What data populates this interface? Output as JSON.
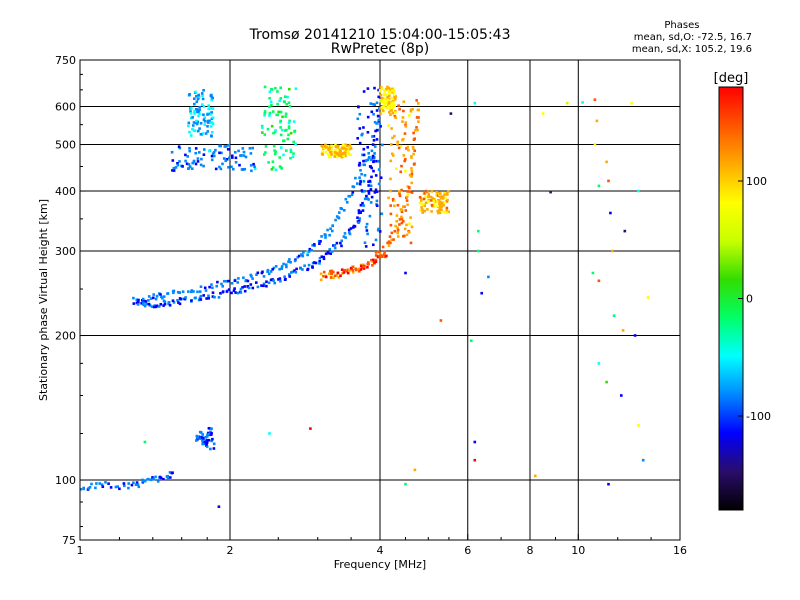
{
  "chart_data": {
    "type": "scatter",
    "title": "Tromsø 20141210 15:04:00-15:05:43",
    "subtitle": "RwPretec (8p)",
    "xlabel": "Frequency [MHz]",
    "ylabel": "Stationary phase Virtual Height [km]",
    "xscale": "log",
    "yscale": "log",
    "xlim": [
      1,
      16
    ],
    "ylim": [
      75,
      750
    ],
    "xticks": [
      1,
      2,
      4,
      6,
      8,
      10,
      16
    ],
    "yticks": [
      75,
      100,
      200,
      300,
      400,
      500,
      600,
      750
    ],
    "grid": true,
    "phase_legend": {
      "heading": "Phases",
      "line_o": "mean, sd,O: -72.5, 16.7",
      "line_x": "mean, sd,X: 105.2, 19.6"
    },
    "colorbar": {
      "label": "[deg]",
      "range": [
        -180,
        180
      ],
      "ticks": [
        100,
        0,
        -100
      ],
      "colors": [
        "#000000",
        "#2a0d6b",
        "#0000ff",
        "#0088ff",
        "#00ffff",
        "#00ff66",
        "#33dd00",
        "#c8ff00",
        "#ffff00",
        "#ffaa00",
        "#ff5500",
        "#ff0000"
      ]
    },
    "traces": [
      {
        "f": [
          1.29,
          1.33,
          1.4,
          1.5,
          1.6,
          1.75,
          1.9,
          2.05,
          2.2,
          2.4,
          2.6,
          2.8,
          3.0,
          3.2,
          3.4,
          3.6,
          3.75,
          3.85,
          3.92,
          3.97
        ],
        "h": [
          237,
          233,
          232,
          234,
          236,
          240,
          244,
          248,
          252,
          258,
          265,
          275,
          285,
          300,
          320,
          345,
          380,
          430,
          520,
          620
        ],
        "phase": -100
      },
      {
        "f": [
          1.35,
          1.45,
          1.6,
          1.8,
          2.0,
          2.2,
          2.4,
          2.6,
          2.8,
          3.0,
          3.2,
          3.4,
          3.6,
          3.8
        ],
        "h": [
          240,
          242,
          246,
          252,
          258,
          264,
          272,
          282,
          295,
          312,
          336,
          370,
          420,
          480
        ],
        "phase": -85
      },
      {
        "f": [
          3.05,
          3.3,
          3.6,
          3.9,
          4.2,
          4.4,
          4.55,
          4.65,
          4.72,
          4.78
        ],
        "h": [
          265,
          268,
          275,
          290,
          315,
          345,
          390,
          450,
          530,
          620
        ],
        "phase": 130
      },
      {
        "f": [
          3.1,
          3.4,
          3.7,
          3.95,
          4.1
        ],
        "h": [
          268,
          271,
          278,
          288,
          298
        ],
        "phase": 160
      },
      {
        "f": [
          1.0,
          1.1,
          1.25,
          1.35,
          1.45,
          1.55
        ],
        "h": [
          96,
          98,
          97,
          99,
          101,
          103
        ],
        "phase": -90
      },
      {
        "f": [
          1.72,
          1.75,
          1.78,
          1.8,
          1.82,
          1.85
        ],
        "h": [
          120,
          125,
          118,
          122,
          128,
          115
        ],
        "phase": -95
      }
    ],
    "clusters": [
      {
        "f": [
          2.32,
          2.72
        ],
        "h": [
          440,
          660
        ],
        "phase": -20
      },
      {
        "f": [
          1.52,
          2.25
        ],
        "h": [
          440,
          500
        ],
        "phase": -90
      },
      {
        "f": [
          1.65,
          1.85
        ],
        "h": [
          520,
          650
        ],
        "phase": -70
      },
      {
        "f": [
          3.6,
          4.05
        ],
        "h": [
          300,
          660
        ],
        "phase": -100
      },
      {
        "f": [
          4.15,
          4.65
        ],
        "h": [
          310,
          650
        ],
        "phase": 120
      },
      {
        "f": [
          3.05,
          3.5
        ],
        "h": [
          470,
          500
        ],
        "phase": 100
      },
      {
        "f": [
          4.0,
          4.3
        ],
        "h": [
          580,
          660
        ],
        "phase": 90
      },
      {
        "f": [
          4.8,
          5.5
        ],
        "h": [
          360,
          400
        ],
        "phase": 110
      }
    ],
    "scatter_points": [
      {
        "f": 5.55,
        "h": 580,
        "phase": -150
      },
      {
        "f": 6.2,
        "h": 610,
        "phase": -40
      },
      {
        "f": 6.3,
        "h": 330,
        "phase": -20
      },
      {
        "f": 6.3,
        "h": 300,
        "phase": -30
      },
      {
        "f": 6.6,
        "h": 265,
        "phase": -90
      },
      {
        "f": 6.4,
        "h": 245,
        "phase": -120
      },
      {
        "f": 6.1,
        "h": 195,
        "phase": -20
      },
      {
        "f": 6.2,
        "h": 110,
        "phase": 170
      },
      {
        "f": 6.2,
        "h": 120,
        "phase": -100
      },
      {
        "f": 5.3,
        "h": 215,
        "phase": 160
      },
      {
        "f": 4.7,
        "h": 105,
        "phase": 120
      },
      {
        "f": 4.5,
        "h": 98,
        "phase": -20
      },
      {
        "f": 4.5,
        "h": 270,
        "phase": -110
      },
      {
        "f": 2.9,
        "h": 128,
        "phase": 170
      },
      {
        "f": 2.4,
        "h": 125,
        "phase": -40
      },
      {
        "f": 1.35,
        "h": 120,
        "phase": -30
      },
      {
        "f": 1.9,
        "h": 88,
        "phase": -110
      },
      {
        "f": 8.2,
        "h": 102,
        "phase": 120
      },
      {
        "f": 8.8,
        "h": 398,
        "phase": -150
      },
      {
        "f": 8.5,
        "h": 580,
        "phase": 80
      },
      {
        "f": 9.5,
        "h": 610,
        "phase": 40
      },
      {
        "f": 10.2,
        "h": 612,
        "phase": -60
      },
      {
        "f": 10.8,
        "h": 620,
        "phase": 160
      },
      {
        "f": 10.9,
        "h": 560,
        "phase": 130
      },
      {
        "f": 10.8,
        "h": 500,
        "phase": 70
      },
      {
        "f": 11.4,
        "h": 460,
        "phase": 110
      },
      {
        "f": 11.6,
        "h": 360,
        "phase": -120
      },
      {
        "f": 12.4,
        "h": 330,
        "phase": -150
      },
      {
        "f": 11.7,
        "h": 300,
        "phase": 100
      },
      {
        "f": 10.7,
        "h": 270,
        "phase": -20
      },
      {
        "f": 11.0,
        "h": 260,
        "phase": 150
      },
      {
        "f": 11.8,
        "h": 220,
        "phase": -30
      },
      {
        "f": 12.3,
        "h": 205,
        "phase": 110
      },
      {
        "f": 13.0,
        "h": 200,
        "phase": -120
      },
      {
        "f": 11.0,
        "h": 175,
        "phase": -60
      },
      {
        "f": 11.4,
        "h": 160,
        "phase": 20
      },
      {
        "f": 12.2,
        "h": 150,
        "phase": -100
      },
      {
        "f": 13.2,
        "h": 130,
        "phase": 80
      },
      {
        "f": 13.5,
        "h": 110,
        "phase": -70
      },
      {
        "f": 11.5,
        "h": 98,
        "phase": -120
      },
      {
        "f": 13.8,
        "h": 240,
        "phase": 70
      },
      {
        "f": 13.2,
        "h": 400,
        "phase": -40
      },
      {
        "f": 12.8,
        "h": 610,
        "phase": 90
      },
      {
        "f": 11.5,
        "h": 420,
        "phase": 150
      },
      {
        "f": 11.0,
        "h": 410,
        "phase": -10
      }
    ]
  }
}
